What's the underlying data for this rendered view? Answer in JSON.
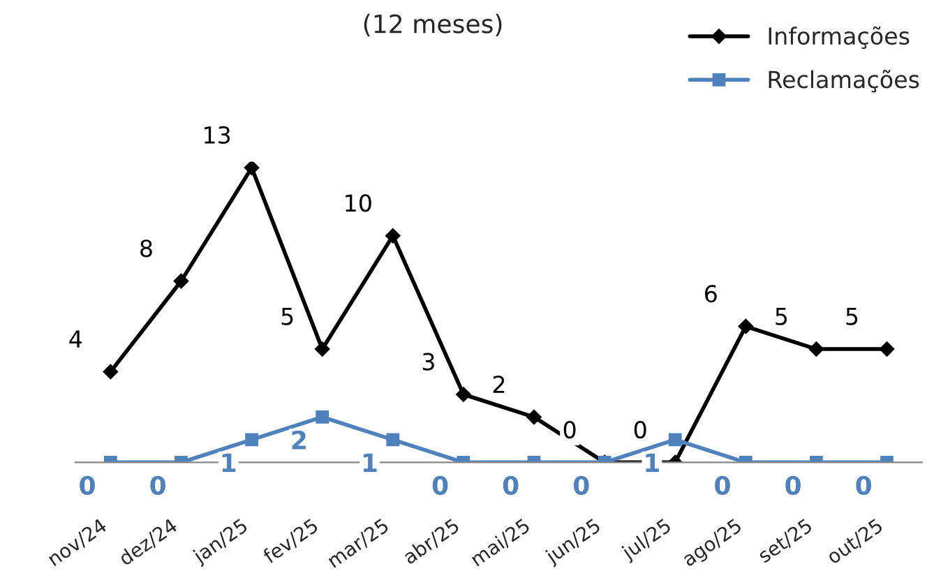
{
  "chart_data": {
    "type": "line",
    "title": "(12 meses)",
    "categories": [
      "nov/24",
      "dez/24",
      "jan/25",
      "fev/25",
      "mar/25",
      "abr/25",
      "mai/25",
      "jun/25",
      "jul/25",
      "ago/25",
      "set/25",
      "out/25"
    ],
    "series": [
      {
        "name": "Informações",
        "color": "#000000",
        "marker": "diamond",
        "values": [
          4,
          8,
          13,
          5,
          10,
          3,
          2,
          0,
          0,
          6,
          5,
          5
        ]
      },
      {
        "name": "Reclamações",
        "color": "#4f81bd",
        "marker": "square",
        "values": [
          0,
          0,
          1,
          2,
          1,
          0,
          0,
          0,
          1,
          0,
          0,
          0
        ]
      }
    ],
    "data_labels": true,
    "legend": "top right",
    "grid": false
  }
}
